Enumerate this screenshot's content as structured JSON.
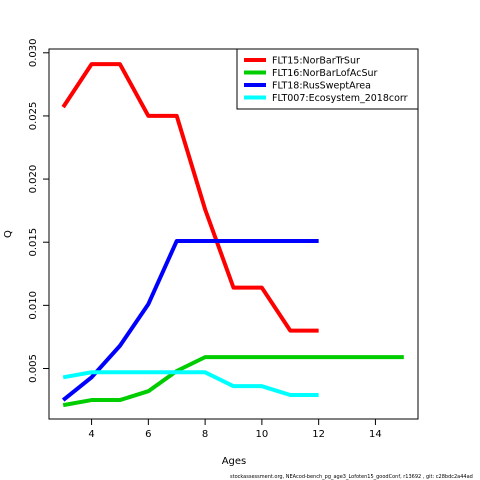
{
  "chart_data": {
    "type": "line",
    "xlabel": "Ages",
    "ylabel": "Q",
    "xlim": [
      2.5,
      15.5
    ],
    "ylim": [
      0.001,
      0.0303
    ],
    "xticks": [
      4,
      6,
      8,
      10,
      12,
      14
    ],
    "yticks": [
      0.005,
      0.01,
      0.015,
      0.02,
      0.025,
      0.03
    ],
    "ytick_labels": [
      "0.005",
      "0.010",
      "0.015",
      "0.020",
      "0.025",
      "0.030"
    ],
    "grid": false,
    "legend_position": "top-right",
    "series": [
      {
        "name": "FLT15:NorBarTrSur",
        "color": "#ff0000",
        "x": [
          3,
          4,
          5,
          6,
          7,
          8,
          9,
          10,
          11,
          12
        ],
        "y": [
          0.0257,
          0.0291,
          0.0291,
          0.025,
          0.025,
          0.0176,
          0.0114,
          0.0114,
          0.008,
          0.008
        ]
      },
      {
        "name": "FLT16:NorBarLofAcSur",
        "color": "#00cd00",
        "x": [
          3,
          4,
          5,
          6,
          7,
          8,
          9,
          10,
          11,
          12,
          13,
          14,
          15
        ],
        "y": [
          0.0021,
          0.0025,
          0.0025,
          0.0032,
          0.0048,
          0.0059,
          0.0059,
          0.0059,
          0.0059,
          0.0059,
          0.0059,
          0.0059,
          0.0059
        ]
      },
      {
        "name": "FLT18:RusSweptArea",
        "color": "#0000ff",
        "x": [
          3,
          4,
          5,
          6,
          7,
          8,
          9,
          10,
          11,
          12
        ],
        "y": [
          0.0025,
          0.0043,
          0.0068,
          0.0101,
          0.0151,
          0.0151,
          0.0151,
          0.0151,
          0.0151,
          0.0151
        ]
      },
      {
        "name": "FLT007:Ecosystem_2018corr",
        "color": "#00ffff",
        "x": [
          3,
          4,
          5,
          6,
          7,
          8,
          9,
          10,
          11,
          12
        ],
        "y": [
          0.0043,
          0.0047,
          0.0047,
          0.0047,
          0.0047,
          0.0047,
          0.0036,
          0.0036,
          0.0029,
          0.0029
        ]
      }
    ]
  },
  "footnote": "stockassessment.org, NEAcod-bench_pg_age3_Lofoten15_goodConf, r13692 , git: c28bdc2a44ad"
}
